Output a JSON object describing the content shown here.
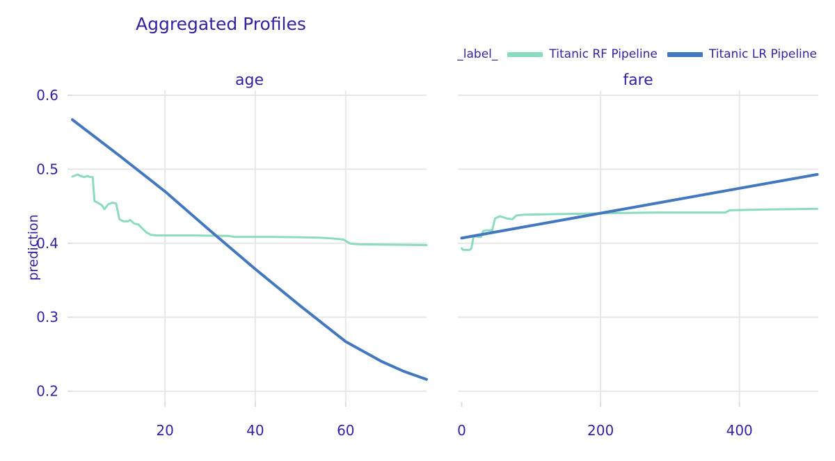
{
  "page": {
    "title": "Aggregated Profiles"
  },
  "colors": {
    "text": "#371ea3",
    "grid": "#e7e7e7",
    "background": "#ffffff",
    "rf_green": "#8bdcbe",
    "lr_blue": "#4378bf"
  },
  "legend": {
    "title": "_label_",
    "series": [
      {
        "label": "Titanic RF Pipeline",
        "color": "#8bdcbe"
      },
      {
        "label": "Titanic LR Pipeline",
        "color": "#4378bf"
      }
    ]
  },
  "chart_data": [
    {
      "type": "line",
      "facet_title": "age",
      "xlabel": "",
      "ylabel": "prediction",
      "xlim": [
        -0.5,
        77.9
      ],
      "ylim": [
        0.1855,
        0.6066
      ],
      "xticks": [
        20,
        40,
        60
      ],
      "grid_x": [
        20,
        40,
        60
      ],
      "yticks": [
        0.2,
        0.3,
        0.4,
        0.5,
        0.6
      ],
      "show_ytick_labels": true,
      "grid": true,
      "legend_position": "top-right",
      "series": [
        {
          "name": "Titanic RF Pipeline",
          "color": "#8bdcbe",
          "width": 3,
          "points": [
            [
              -0.5,
              0.49
            ],
            [
              0.7,
              0.493
            ],
            [
              1.4,
              0.4905
            ],
            [
              2.2,
              0.4895
            ],
            [
              2.8,
              0.491
            ],
            [
              3.4,
              0.4895
            ],
            [
              4.0,
              0.4895
            ],
            [
              4.4,
              0.457
            ],
            [
              5.2,
              0.4545
            ],
            [
              6.0,
              0.4515
            ],
            [
              6.6,
              0.446
            ],
            [
              7.4,
              0.4525
            ],
            [
              8.4,
              0.455
            ],
            [
              9.2,
              0.4535
            ],
            [
              9.9,
              0.4325
            ],
            [
              10.8,
              0.4295
            ],
            [
              11.8,
              0.4295
            ],
            [
              12.3,
              0.4315
            ],
            [
              13.2,
              0.4265
            ],
            [
              14.1,
              0.4255
            ],
            [
              14.9,
              0.4205
            ],
            [
              15.9,
              0.4145
            ],
            [
              16.9,
              0.4115
            ],
            [
              18,
              0.4105
            ],
            [
              26,
              0.4105
            ],
            [
              34,
              0.41
            ],
            [
              35.5,
              0.4085
            ],
            [
              44,
              0.4085
            ],
            [
              50,
              0.408
            ],
            [
              54,
              0.4075
            ],
            [
              57,
              0.4065
            ],
            [
              59.5,
              0.405
            ],
            [
              61,
              0.3995
            ],
            [
              63,
              0.3985
            ],
            [
              70,
              0.398
            ],
            [
              77.9,
              0.3975
            ]
          ]
        },
        {
          "name": "Titanic LR Pipeline",
          "color": "#4378bf",
          "width": 4,
          "points": [
            [
              -0.5,
              0.567
            ],
            [
              10,
              0.518
            ],
            [
              20,
              0.47
            ],
            [
              30,
              0.417
            ],
            [
              40,
              0.365
            ],
            [
              50,
              0.315
            ],
            [
              60,
              0.267
            ],
            [
              68,
              0.24
            ],
            [
              73,
              0.2265
            ],
            [
              77.9,
              0.216
            ]
          ]
        }
      ]
    },
    {
      "type": "line",
      "facet_title": "fare",
      "xlabel": "",
      "ylabel": "prediction",
      "xlim": [
        -5.5,
        513.5
      ],
      "ylim": [
        0.1855,
        0.6066
      ],
      "xticks": [
        0,
        200,
        400
      ],
      "grid_x": [
        200,
        400
      ],
      "yticks": [
        0.2,
        0.3,
        0.4,
        0.5,
        0.6
      ],
      "show_ytick_labels": false,
      "grid": true,
      "series": [
        {
          "name": "Titanic RF Pipeline",
          "color": "#8bdcbe",
          "width": 3,
          "points": [
            [
              0,
              0.393
            ],
            [
              2,
              0.391
            ],
            [
              12,
              0.391
            ],
            [
              14,
              0.3935
            ],
            [
              17,
              0.4085
            ],
            [
              21,
              0.4095
            ],
            [
              24,
              0.4085
            ],
            [
              28,
              0.4085
            ],
            [
              31,
              0.4165
            ],
            [
              36,
              0.4175
            ],
            [
              44,
              0.4175
            ],
            [
              48,
              0.4335
            ],
            [
              55,
              0.4365
            ],
            [
              65,
              0.4335
            ],
            [
              73,
              0.4325
            ],
            [
              79,
              0.4375
            ],
            [
              90,
              0.4385
            ],
            [
              150,
              0.4395
            ],
            [
              200,
              0.4405
            ],
            [
              280,
              0.4415
            ],
            [
              380,
              0.4415
            ],
            [
              386,
              0.4445
            ],
            [
              430,
              0.4455
            ],
            [
              470,
              0.446
            ],
            [
              512,
              0.4465
            ]
          ]
        },
        {
          "name": "Titanic LR Pipeline",
          "color": "#4378bf",
          "width": 4,
          "points": [
            [
              0,
              0.407
            ],
            [
              128,
              0.4285
            ],
            [
              256,
              0.45
            ],
            [
              384,
              0.4715
            ],
            [
              512,
              0.493
            ]
          ]
        }
      ]
    }
  ]
}
